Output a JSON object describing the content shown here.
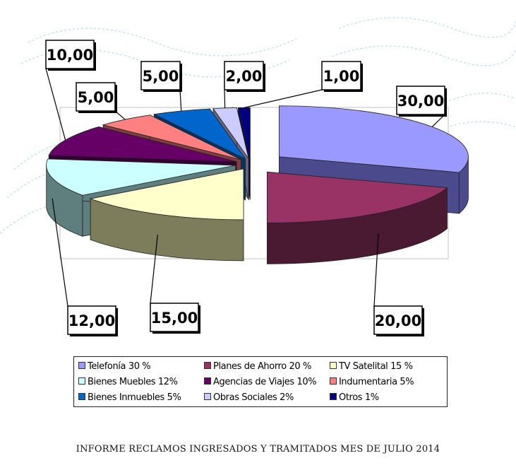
{
  "chart_data": {
    "type": "pie",
    "style": "3d-exploded",
    "slices": [
      {
        "label": "Telefonía 30 %",
        "value": 30.0,
        "value_label": "30,00",
        "color": "#9999ff",
        "side": "#4a4a8c"
      },
      {
        "label": "Planes de Ahorro 20 %",
        "value": 20.0,
        "value_label": "20,00",
        "color": "#993366",
        "side": "#4a1a33"
      },
      {
        "label": "TV Satelital 15 %",
        "value": 15.0,
        "value_label": "15,00",
        "color": "#ffffcc",
        "side": "#7d7d5c"
      },
      {
        "label": "Bienes Muebles 12%",
        "value": 12.0,
        "value_label": "12,00",
        "color": "#ccffff",
        "side": "#5f7f7f"
      },
      {
        "label": "Agencias de Viajes 10%",
        "value": 10.0,
        "value_label": "10,00",
        "color": "#660066",
        "side": "#330033"
      },
      {
        "label": "Indumentaria 5%",
        "value": 5.0,
        "value_label": "5,00",
        "color": "#ff8080",
        "side": "#7f3f3f"
      },
      {
        "label": "Bienes Inmuebles 5%",
        "value": 5.0,
        "value_label": "5,00",
        "color": "#0066cc",
        "side": "#003366"
      },
      {
        "label": "Obras Sociales 2%",
        "value": 2.0,
        "value_label": "2,00",
        "color": "#ccccff",
        "side": "#66667f"
      },
      {
        "label": "Otros 1%",
        "value": 1.0,
        "value_label": "1,00",
        "color": "#000080",
        "side": "#000040"
      }
    ],
    "legend_position": "bottom"
  },
  "footer": {
    "title": "INFORME RECLAMOS INGRESADOS Y TRAMITADOS MES DE JULIO 2014"
  }
}
